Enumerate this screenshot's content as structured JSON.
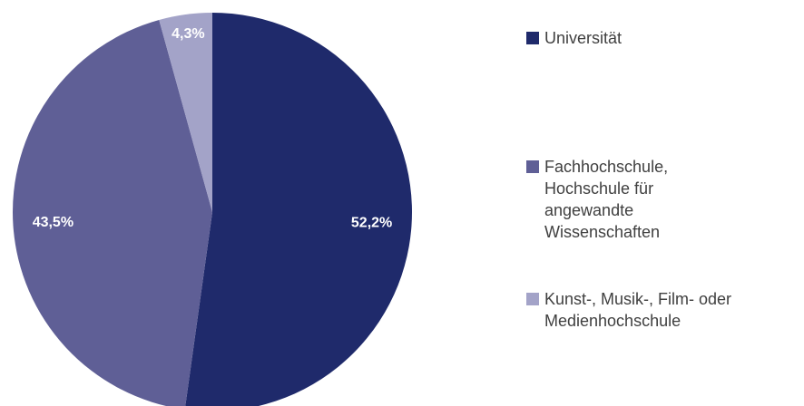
{
  "chart_data": {
    "type": "pie",
    "categories": [
      "Universität",
      "Fachhochschule, Hochschule für angewandte Wissenschaften",
      "Kunst-, Musik-, Film- oder Medienhochschule"
    ],
    "values": [
      52.2,
      43.5,
      4.3
    ],
    "value_labels": [
      "52,2%",
      "43,5%",
      "4,3%"
    ],
    "colors": [
      "#1f2a6b",
      "#5f5f96",
      "#a3a3c8"
    ],
    "legend": "right"
  }
}
